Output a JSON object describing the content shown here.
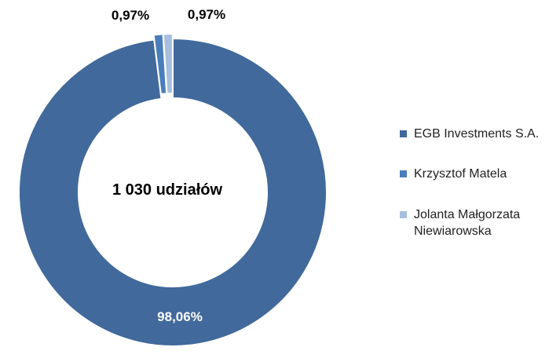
{
  "chart_data": {
    "type": "pie",
    "center_label": "1 030 udziałów",
    "slices": [
      {
        "name": "EGB Investments S.A.",
        "value": 98.06,
        "label": "98,06%",
        "color": "#41699B"
      },
      {
        "name": "Krzysztof Matela",
        "value": 0.97,
        "label": "0,97%",
        "color": "#4A7EBB"
      },
      {
        "name": "Jolanta Małgorzata Niewiarowska",
        "value": 0.97,
        "label": "0,97%",
        "color": "#A7BFDE"
      }
    ],
    "legend_position": "right"
  },
  "legend": {
    "items": [
      {
        "label": "EGB Investments S.A.",
        "color": "#41699B"
      },
      {
        "label": "Krzysztof Matela",
        "color": "#4A7EBB"
      },
      {
        "label_line1": "Jolanta Małgorzata",
        "label_line2": "Niewiarowska",
        "color": "#A7BFDE"
      }
    ]
  }
}
